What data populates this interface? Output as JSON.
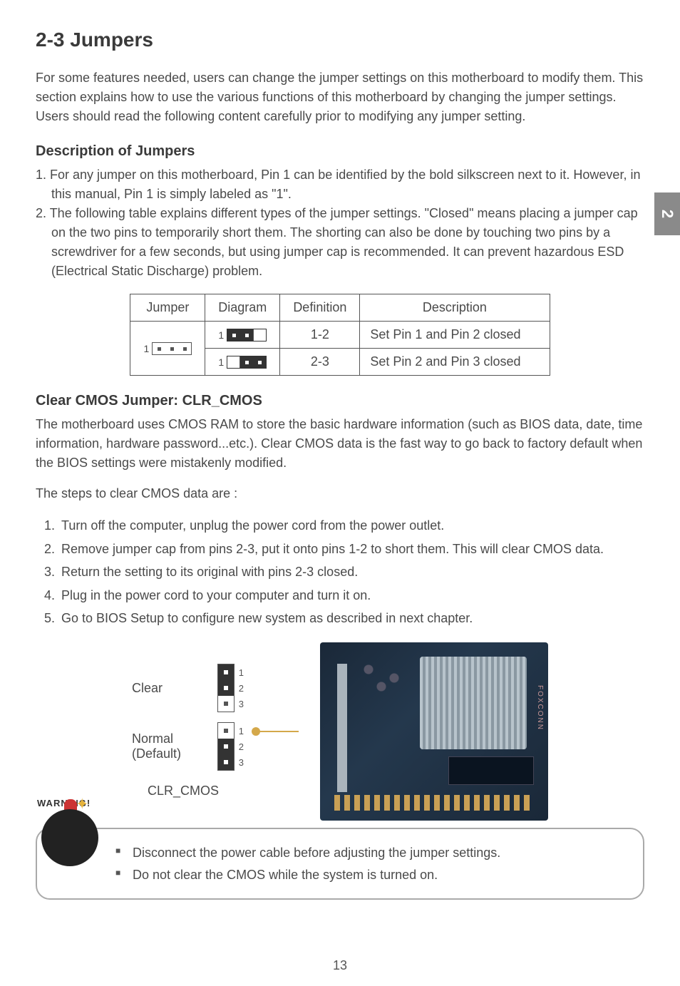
{
  "side_tab": "2",
  "title": "2-3 Jumpers",
  "intro": "For some features needed, users can change the jumper settings on this motherboard to modify them. This section explains how to use the various functions of this motherboard by changing the jumper settings. Users should read the following content carefully prior to modifying any jumper setting.",
  "desc_heading": "Description of Jumpers",
  "desc_item1": "1. For any jumper on this motherboard, Pin 1 can be identified by the bold silkscreen next to it. However, in this manual, Pin 1 is simply labeled as \"1\".",
  "desc_item2": "2. The following table explains different types of the jumper settings. \"Closed\" means placing a jumper cap on the two pins to temporarily short them. The shorting can also be done by touching two pins by a screwdriver for a few seconds, but using jumper cap is recommended. It can prevent hazardous ESD (Electrical Static Discharge) problem.",
  "table": {
    "headers": {
      "c1": "Jumper",
      "c2": "Diagram",
      "c3": "Definition",
      "c4": "Description"
    },
    "rows": [
      {
        "definition": "1-2",
        "description": "Set Pin 1 and Pin 2 closed"
      },
      {
        "definition": "2-3",
        "description": "Set Pin 2 and Pin 3 closed"
      }
    ],
    "pin_label": "1"
  },
  "clear_heading": "Clear CMOS Jumper: CLR_CMOS",
  "clear_para1": "The motherboard uses CMOS RAM to store the basic hardware information (such as BIOS data, date, time information, hardware password...etc.). Clear CMOS data is the fast way to go back to factory default when the BIOS settings were mistakenly modified.",
  "clear_para2": "The steps to clear CMOS data are :",
  "steps": [
    "Turn off the computer, unplug the power cord from the power outlet.",
    "Remove jumper cap from pins 2-3, put it onto pins 1-2 to short them. This will clear CMOS data.",
    "Return the setting to its original with pins 2-3 closed.",
    "Plug in the power cord to your computer and turn it on.",
    "Go to BIOS Setup to configure new system as described in next chapter."
  ],
  "diagram": {
    "clear_label": "Clear",
    "normal_label": "Normal",
    "default_label": "(Default)",
    "caption": "CLR_CMOS",
    "pin_nums": [
      "1",
      "2",
      "3"
    ],
    "foxconn": "FOXCONN"
  },
  "warning": {
    "arc": "WARNING!",
    "items": [
      "Disconnect the power cable before adjusting the jumper settings.",
      "Do not clear the CMOS while the system is turned on."
    ]
  },
  "page_number": "13",
  "colors": {
    "text": "#4a4a4a",
    "heading": "#3a3a3a",
    "border": "#555555",
    "arrow": "#d4a84a",
    "side_tab_bg": "#8a8a8a",
    "board_bg": "#1a2838"
  }
}
